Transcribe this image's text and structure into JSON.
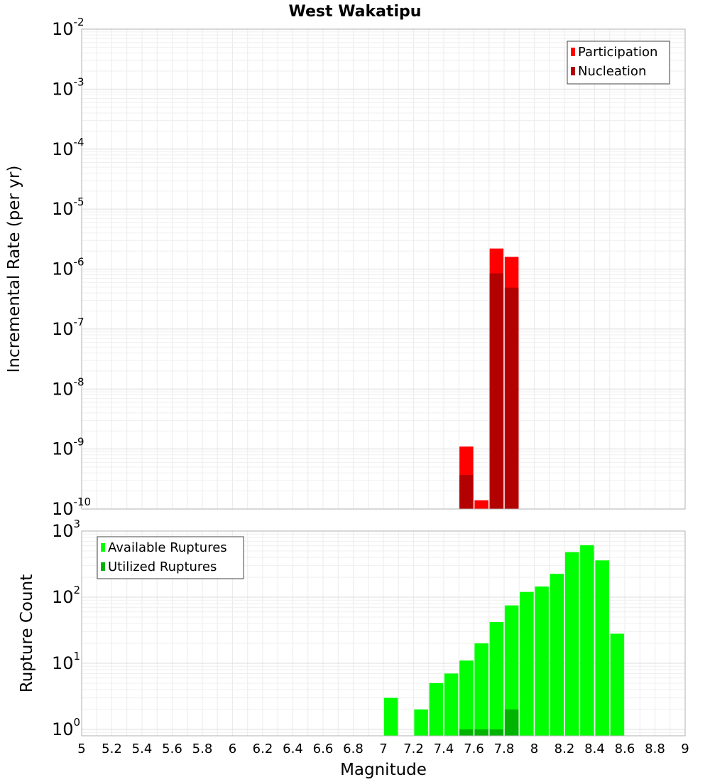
{
  "title": "West Wakatipu",
  "chart_data": [
    {
      "type": "bar",
      "name": "rate-panel",
      "title": "West Wakatipu",
      "xlabel": "",
      "ylabel": "Incremental Rate (per yr)",
      "yscale": "log",
      "xlim": [
        5,
        9
      ],
      "ylim": [
        1e-10,
        0.01
      ],
      "grid": true,
      "legend_position": "top-right",
      "yticks": [
        {
          "base": "10",
          "exp": "-10"
        },
        {
          "base": "10",
          "exp": "-9"
        },
        {
          "base": "10",
          "exp": "-8"
        },
        {
          "base": "10",
          "exp": "-7"
        },
        {
          "base": "10",
          "exp": "-6"
        },
        {
          "base": "10",
          "exp": "-5"
        },
        {
          "base": "10",
          "exp": "-4"
        },
        {
          "base": "10",
          "exp": "-3"
        },
        {
          "base": "10",
          "exp": "-2"
        }
      ],
      "series": [
        {
          "name": "Participation",
          "color": "#ff0000",
          "x": [
            7.55,
            7.65,
            7.75,
            7.85
          ],
          "values": [
            1.1e-09,
            1.4e-10,
            2.2e-06,
            1.6e-06
          ]
        },
        {
          "name": "Nucleation",
          "color": "#b30000",
          "x": [
            7.55,
            7.75,
            7.85
          ],
          "values": [
            3.7e-10,
            8.5e-07,
            4.9e-07
          ]
        }
      ]
    },
    {
      "type": "bar",
      "name": "count-panel",
      "xlabel": "Magnitude",
      "ylabel": "Rupture Count",
      "yscale": "log",
      "xlim": [
        5,
        9
      ],
      "ylim": [
        0.8,
        1000
      ],
      "grid": true,
      "legend_position": "top-left",
      "xticks": [
        "5",
        "5.2",
        "5.4",
        "5.6",
        "5.8",
        "6",
        "6.2",
        "6.4",
        "6.6",
        "6.8",
        "7",
        "7.2",
        "7.4",
        "7.6",
        "7.8",
        "8",
        "8.2",
        "8.4",
        "8.6",
        "8.8",
        "9"
      ],
      "yticks": [
        {
          "base": "10",
          "exp": "0"
        },
        {
          "base": "10",
          "exp": "1"
        },
        {
          "base": "10",
          "exp": "2"
        },
        {
          "base": "10",
          "exp": "3"
        }
      ],
      "series": [
        {
          "name": "Available Ruptures",
          "color": "#00ff00",
          "x": [
            7.05,
            7.25,
            7.35,
            7.45,
            7.55,
            7.65,
            7.75,
            7.85,
            7.95,
            8.05,
            8.15,
            8.25,
            8.35,
            8.45,
            8.55
          ],
          "values": [
            3,
            2,
            5,
            7,
            11,
            20,
            42,
            75,
            120,
            145,
            225,
            480,
            610,
            360,
            28
          ]
        },
        {
          "name": "Utilized Ruptures",
          "color": "#00b300",
          "x": [
            7.55,
            7.65,
            7.75,
            7.85
          ],
          "values": [
            1,
            1,
            1,
            2
          ]
        }
      ]
    }
  ]
}
